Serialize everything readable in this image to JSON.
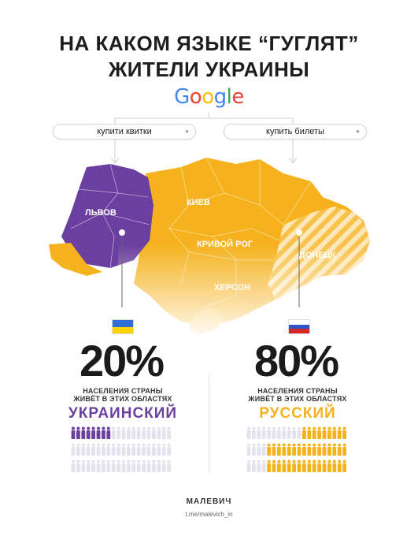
{
  "header": {
    "title_line1": "НА КАКОМ ЯЗЫКЕ “ГУГЛЯТ”",
    "title_line2": "ЖИТЕЛИ УКРАИНЫ",
    "google_logo": "Google"
  },
  "searches": {
    "left_query": "купити квитки",
    "right_query": "купить билеты"
  },
  "map": {
    "cities": {
      "lviv": "ЛЬВОВ",
      "kiev": "КИЕВ",
      "krivoy_rog": "КРИВОЙ РОГ",
      "donetsk": "ДОНЕЦК",
      "kherson": "ХЕРСОН"
    },
    "colors": {
      "west": "#6b3fa0",
      "east": "#f5b21d",
      "stripe": "#fbd57a"
    }
  },
  "left": {
    "percent": "20%",
    "percent_value": 20,
    "caption_line1": "НАСЕЛЕНИЯ СТРАНЫ",
    "caption_line2": "ЖИВЁТ В ЭТИХ ОБЛАСТЯХ",
    "language": "УКРАИНСКИЙ",
    "flag_icon": "ukraine-flag",
    "accent_color": "#6b3fa0"
  },
  "right": {
    "percent": "80%",
    "percent_value": 80,
    "caption_line1": "НАСЕЛЕНИЯ СТРАНЫ",
    "caption_line2": "ЖИВЁТ В ЭТИХ ОБЛАСТЯХ",
    "language": "РУССКИЙ",
    "flag_icon": "russia-flag",
    "accent_color": "#f5b21d"
  },
  "footer": {
    "brand": "МАЛЕВИЧ",
    "link": "t.me/malevich_in"
  }
}
